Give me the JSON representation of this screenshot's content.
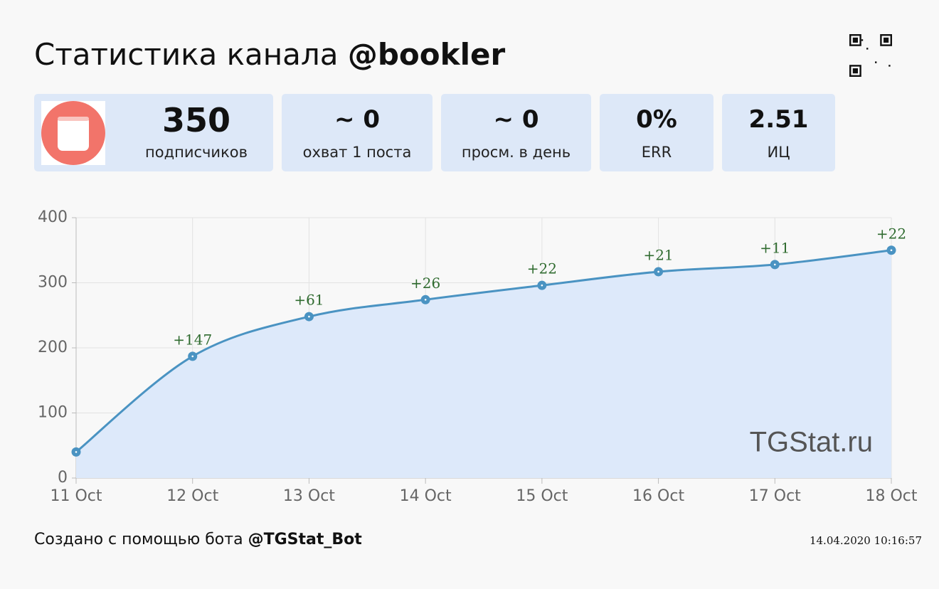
{
  "header": {
    "title": "Статистика канала",
    "channel": "@bookler"
  },
  "stats": [
    {
      "value": "350",
      "label": "подписчиков"
    },
    {
      "value": "~ 0",
      "label": "охват 1 поста"
    },
    {
      "value": "~ 0",
      "label": "просм. в день"
    },
    {
      "value": "0%",
      "label": "ERR"
    },
    {
      "value": "2.51",
      "label": "ИЦ"
    }
  ],
  "chart_data": {
    "type": "line",
    "categories": [
      "11 Oct",
      "12 Oct",
      "13 Oct",
      "14 Oct",
      "15 Oct",
      "16 Oct",
      "17 Oct",
      "18 Oct"
    ],
    "series": [
      {
        "color": "#4a93c2",
        "fill": "#dde9fa",
        "values": [
          40,
          187,
          248,
          274,
          296,
          317,
          328,
          350
        ],
        "annotations": [
          null,
          "+147",
          "+61",
          "+26",
          "+22",
          "+21",
          "+11",
          "+22"
        ]
      }
    ],
    "ylim": [
      0,
      400
    ],
    "yticks": [
      0,
      100,
      200,
      300,
      400
    ],
    "grid": true,
    "watermark": "TGStat.ru"
  },
  "footer": {
    "text": "Создано с помощью бота",
    "bot": "@TGStat_Bot",
    "timestamp": "14.04.2020 10:16:57"
  }
}
